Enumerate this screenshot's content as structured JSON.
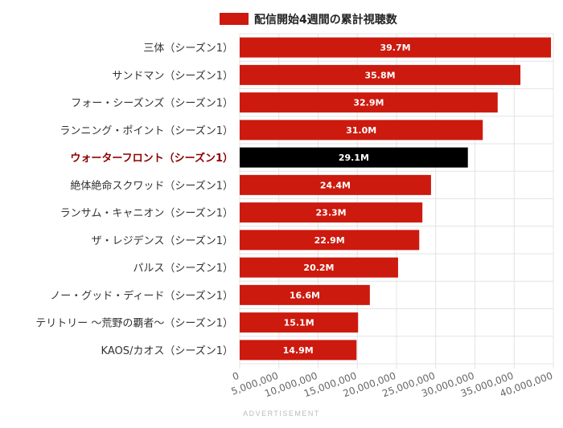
{
  "chart_data": {
    "type": "bar",
    "orientation": "horizontal",
    "legend": {
      "label": "配信開始4週間の累計視聴数",
      "color": "#cc1a0e",
      "position": "top"
    },
    "categories": [
      "三体（シーズン1）",
      "サンドマン（シーズン1）",
      "フォー・シーズンズ（シーズン1）",
      "ランニング・ポイント（シーズン1）",
      "ウォーターフロント（シーズン1）",
      "絶体絶命スクワッド（シーズン1）",
      "ランサム・キャニオン（シーズン1）",
      "ザ・レジデンス（シーズン1）",
      "パルス（シーズン1）",
      "ノー・グッド・ディード（シーズン1）",
      "テリトリー ～荒野の覇者～（シーズン1）",
      "KAOS/カオス（シーズン1）"
    ],
    "series": [
      {
        "name": "配信開始4週間の累計視聴数",
        "values": [
          39700000,
          35800000,
          32900000,
          31000000,
          29100000,
          24400000,
          23300000,
          22900000,
          20200000,
          16600000,
          15100000,
          14900000
        ],
        "labels": [
          "39.7M",
          "35.8M",
          "32.9M",
          "31.0M",
          "29.1M",
          "24.4M",
          "23.3M",
          "22.9M",
          "20.2M",
          "16.6M",
          "15.1M",
          "14.9M"
        ]
      }
    ],
    "highlight_index": 4,
    "highlight_color": "#000000",
    "label_highlight_color": "#8b0000",
    "bar_color": "#cc1a0e",
    "xlim": [
      0,
      40000000
    ],
    "xticks": [
      0,
      5000000,
      10000000,
      15000000,
      20000000,
      25000000,
      30000000,
      35000000,
      40000000
    ],
    "xtick_labels": [
      "0",
      "5,000,000",
      "10,000,000",
      "15,000,000",
      "20,000,000",
      "25,000,000",
      "30,000,000",
      "35,000,000",
      "40,000,000"
    ],
    "grid": true
  },
  "footer": {
    "ad_label": "ADVERTISEMENT"
  }
}
